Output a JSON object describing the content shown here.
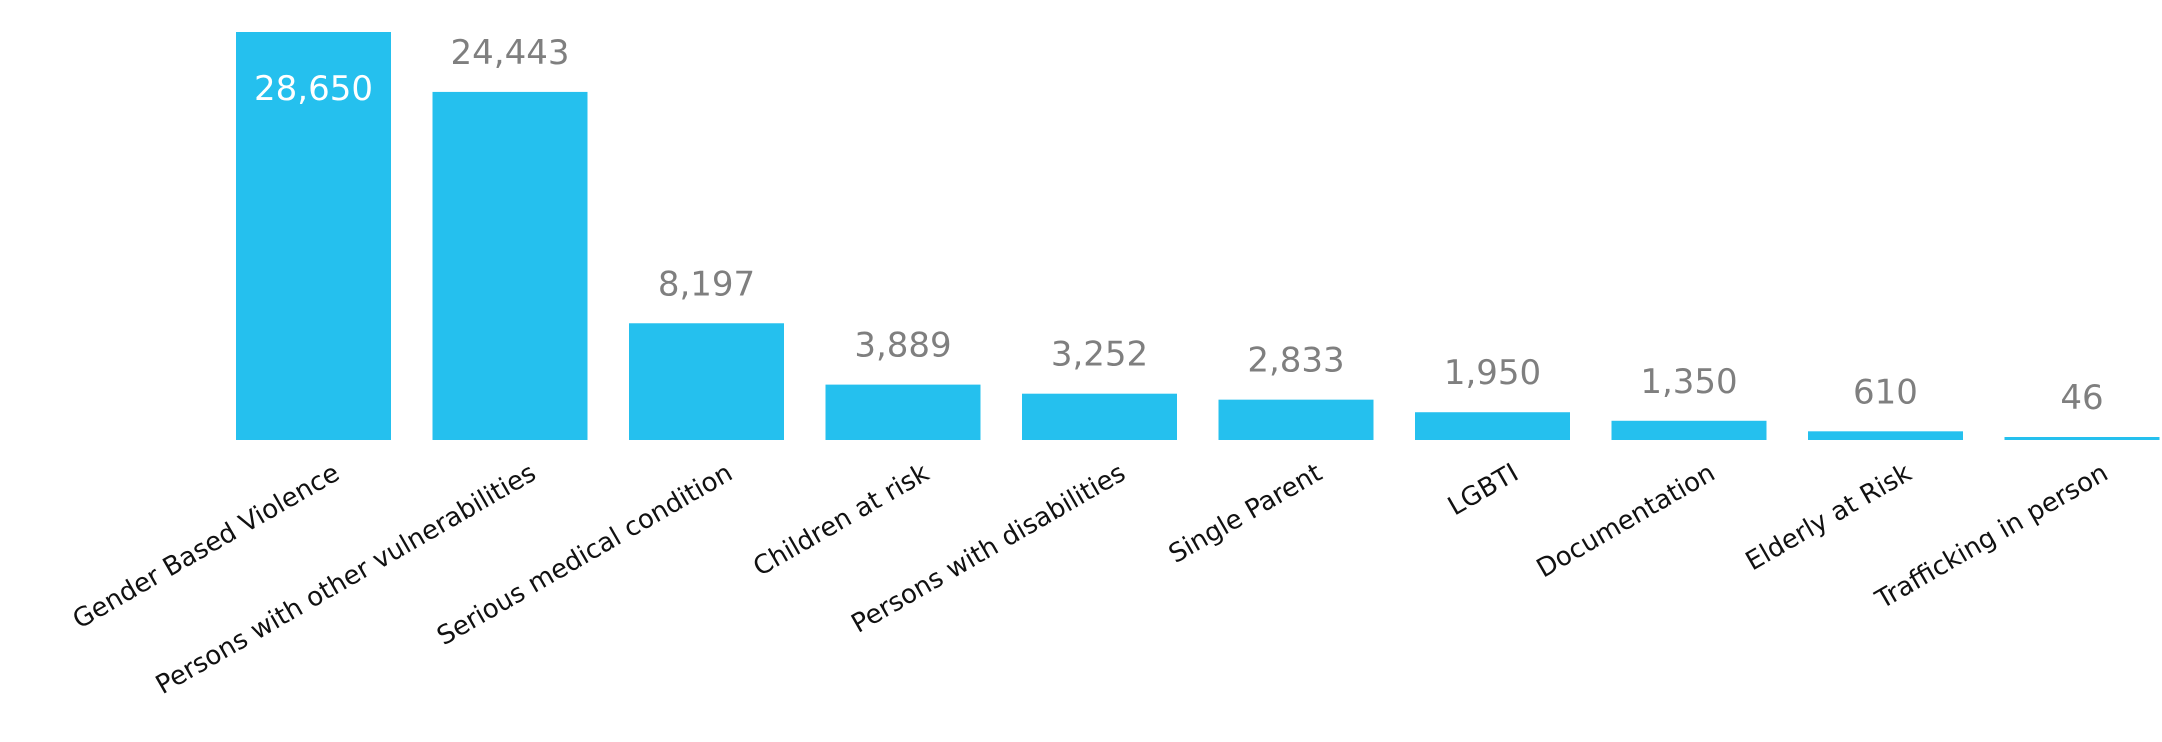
{
  "chart_data": {
    "type": "bar",
    "categories": [
      "Gender Based Violence",
      "Persons with other vulnerabilities",
      "Serious medical condition",
      "Children at risk",
      "Persons with disabilities",
      "Single Parent",
      "LGBTI",
      "Documentation",
      "Elderly at Risk",
      "Trafficking in person"
    ],
    "values": [
      28650,
      24443,
      8197,
      3889,
      3252,
      2833,
      1950,
      1350,
      610,
      46
    ],
    "value_labels": [
      "28,650",
      "24,443",
      "8,197",
      "3,889",
      "3,252",
      "2,833",
      "1,950",
      "1,350",
      "610",
      "46"
    ],
    "label_inside_first_bar": true,
    "title": "",
    "xlabel": "",
    "ylabel": "",
    "ylim": [
      0,
      28650
    ],
    "grid": false,
    "legend": "none",
    "colors": {
      "bar": "#25C0EE",
      "value_text": "#7F7F7F",
      "value_text_inside": "#FFFFFF",
      "category_text": "#111111"
    }
  }
}
